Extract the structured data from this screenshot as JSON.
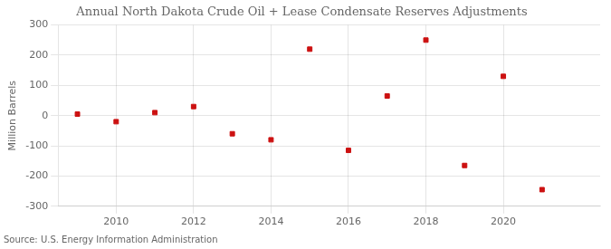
{
  "chart_data": {
    "type": "scatter",
    "title": "Annual North Dakota Crude Oil + Lease Condensate Reserves Adjustments",
    "ylabel": "Million Barrels",
    "source": "Source: U.S. Energy Information Administration",
    "x": [
      2009,
      2010,
      2011,
      2012,
      2013,
      2014,
      2015,
      2016,
      2017,
      2018,
      2019,
      2020,
      2021
    ],
    "values": [
      5,
      -20,
      10,
      30,
      -60,
      -80,
      220,
      -115,
      65,
      250,
      -165,
      130,
      -245
    ],
    "color": "#cc1111",
    "marker": "square",
    "xlim": [
      2008.5,
      2022.5
    ],
    "xticks": [
      2010,
      2012,
      2014,
      2016,
      2018,
      2020
    ],
    "ylim": [
      -300,
      300
    ],
    "yticks": [
      -300,
      -200,
      -100,
      0,
      100,
      200,
      300
    ],
    "grid": true
  }
}
